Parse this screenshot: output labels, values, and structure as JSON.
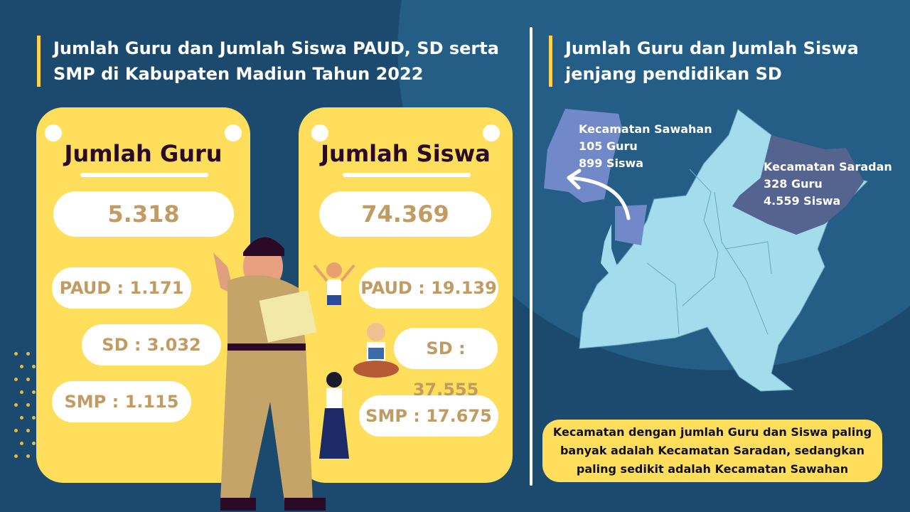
{
  "left": {
    "title": "Jumlah Guru dan Jumlah Siswa PAUD, SD serta SMP di Kabupaten Madiun Tahun 2022",
    "guru": {
      "heading": "Jumlah Guru",
      "total": "5.318",
      "paud": "PAUD : 1.171",
      "sd": "SD : 3.032",
      "smp": "SMP : 1.115"
    },
    "siswa": {
      "heading": "Jumlah Siswa",
      "total": "74.369",
      "paud": "PAUD : 19.139",
      "sd": "SD : 37.555",
      "smp": "SMP : 17.675"
    }
  },
  "right": {
    "title": "Jumlah Guru dan Jumlah Siswa jenjang pendidikan SD",
    "sawahan": {
      "name": "Kecamatan Sawahan",
      "guru": "105 Guru",
      "siswa": "899 Siswa"
    },
    "saradan": {
      "name": "Kecamatan Saradan",
      "guru": "328 Guru",
      "siswa": "4.559 Siswa"
    },
    "summary": "Kecamatan dengan jumlah Guru dan Siswa paling banyak adalah Kecamatan Saradan, sedangkan paling sedikit adalah Kecamatan Sawahan"
  },
  "colors": {
    "background": "#1c4a6e",
    "card": "#fede5a",
    "value": "#c29b63",
    "map": "#a3dcec",
    "sawahan": "#7189c9",
    "saradan": "#55638f"
  }
}
